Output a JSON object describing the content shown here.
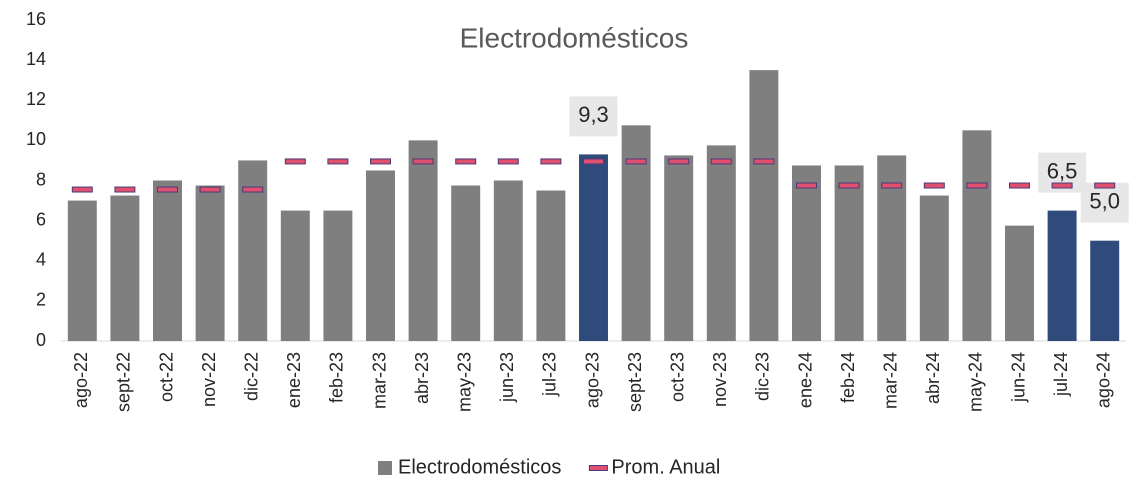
{
  "chart_data": {
    "type": "bar",
    "title": "Electrodomésticos",
    "categories": [
      "ago-22",
      "sept-22",
      "oct-22",
      "nov-22",
      "dic-22",
      "ene-23",
      "feb-23",
      "mar-23",
      "abr-23",
      "may-23",
      "jun-23",
      "jul-23",
      "ago-23",
      "sept-23",
      "oct-23",
      "nov-23",
      "dic-23",
      "ene-24",
      "feb-24",
      "mar-24",
      "abr-24",
      "may-24",
      "jun-24",
      "jul-24",
      "ago-24"
    ],
    "series": [
      {
        "name": "Electrodomésticos",
        "type": "bar",
        "color": "#7f7f7f",
        "colors": [
          "#7f7f7f",
          "#7f7f7f",
          "#7f7f7f",
          "#7f7f7f",
          "#7f7f7f",
          "#7f7f7f",
          "#7f7f7f",
          "#7f7f7f",
          "#7f7f7f",
          "#7f7f7f",
          "#7f7f7f",
          "#7f7f7f",
          "#2f4b7c",
          "#7f7f7f",
          "#7f7f7f",
          "#7f7f7f",
          "#7f7f7f",
          "#7f7f7f",
          "#7f7f7f",
          "#7f7f7f",
          "#7f7f7f",
          "#7f7f7f",
          "#7f7f7f",
          "#2f4b7c",
          "#2f4b7c"
        ],
        "values": [
          7.0,
          7.25,
          8.0,
          7.75,
          9.0,
          6.5,
          6.5,
          8.5,
          10.0,
          7.75,
          8.0,
          7.5,
          9.3,
          10.75,
          9.25,
          9.75,
          13.5,
          8.75,
          8.75,
          9.25,
          7.25,
          10.5,
          5.75,
          6.5,
          5.0
        ],
        "value_labels": [
          null,
          null,
          null,
          null,
          null,
          null,
          null,
          null,
          null,
          null,
          null,
          null,
          "9,3",
          null,
          null,
          null,
          null,
          null,
          null,
          null,
          null,
          null,
          null,
          "6,5",
          "5,0"
        ]
      },
      {
        "name": "Prom. Anual",
        "type": "marker",
        "color": "#e0506e",
        "values": [
          7.55,
          7.55,
          7.55,
          7.55,
          7.55,
          8.95,
          8.95,
          8.95,
          8.95,
          8.95,
          8.95,
          8.95,
          8.95,
          8.95,
          8.95,
          8.95,
          8.95,
          7.75,
          7.75,
          7.75,
          7.75,
          7.75,
          7.75,
          7.75,
          7.75
        ]
      }
    ],
    "ylim": [
      0,
      16
    ],
    "yticks": [
      0,
      2,
      4,
      6,
      8,
      10,
      12,
      14,
      16
    ],
    "grid": false,
    "legend": "bottom"
  }
}
